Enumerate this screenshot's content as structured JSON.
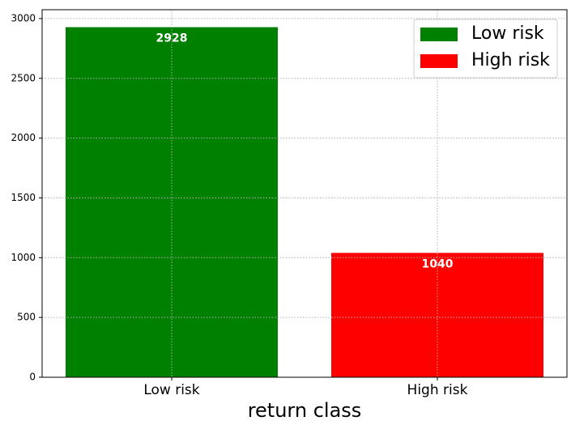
{
  "chart_data": {
    "type": "bar",
    "categories": [
      "Low risk",
      "High risk"
    ],
    "series": [
      {
        "name": "Low risk",
        "color": "#008000",
        "values": [
          2928,
          null
        ]
      },
      {
        "name": "High risk",
        "color": "#ff0000",
        "values": [
          null,
          1040
        ]
      }
    ],
    "x_label": "return class",
    "ylim": [
      0,
      3074
    ],
    "yticks": [
      0,
      500,
      1000,
      1500,
      2000,
      2500,
      3000
    ],
    "grid": true,
    "legend": "upper right"
  }
}
